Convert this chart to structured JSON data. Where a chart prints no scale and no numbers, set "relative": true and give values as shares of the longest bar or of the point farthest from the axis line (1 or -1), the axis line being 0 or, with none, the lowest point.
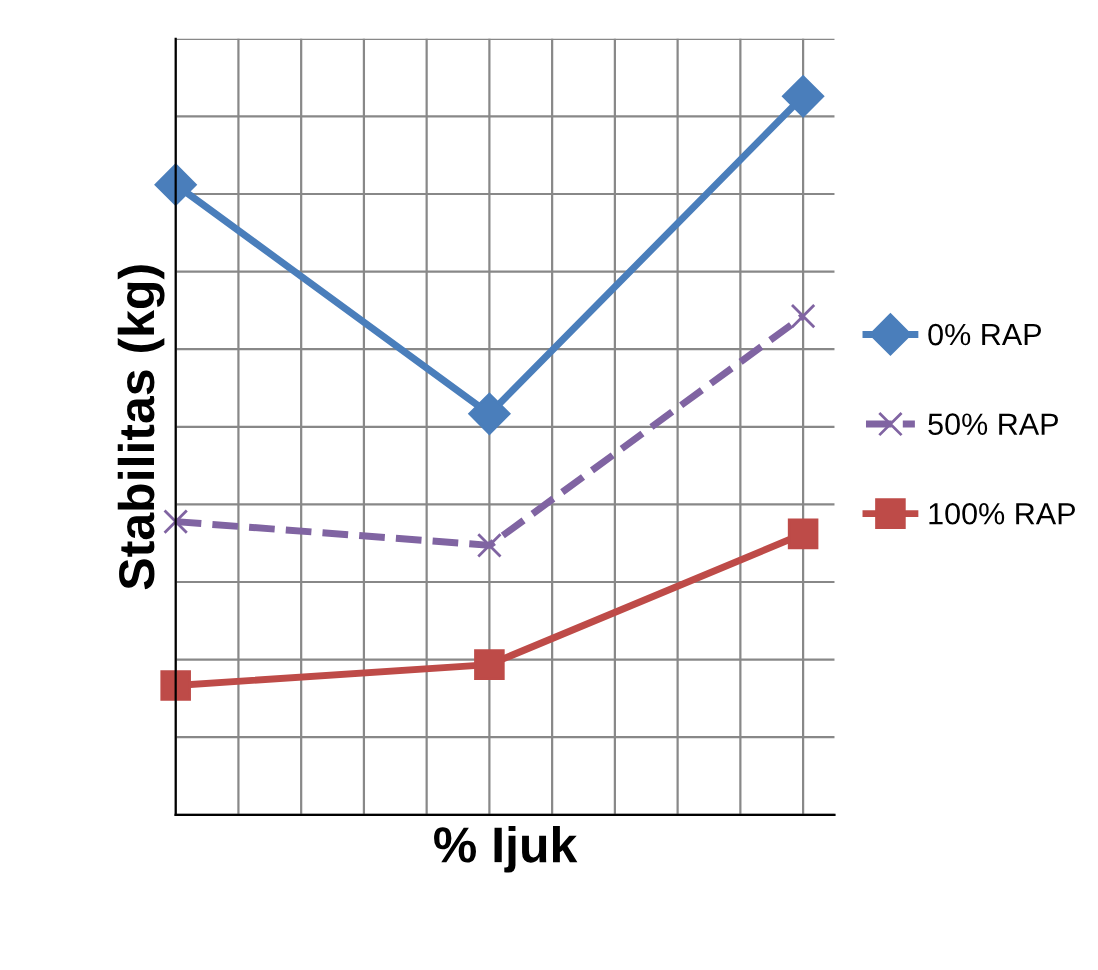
{
  "chart_data": {
    "type": "line",
    "xlabel": "% Ijuk",
    "ylabel": "Stabilitas (kg)",
    "relative": true,
    "categories": [
      null,
      null,
      null
    ],
    "grid": true,
    "legend": "right",
    "series": [
      {
        "name": "0% RAP",
        "color": "#4a7ebb",
        "values": [
          0.877,
          0.558,
          1
        ],
        "marker": "diamond",
        "line_style": "solid"
      },
      {
        "name": "50% RAP",
        "color": "#8064a2",
        "values": [
          0.408,
          0.375,
          0.694
        ],
        "marker": "cross",
        "line_style": "dashed"
      },
      {
        "name": "100% RAP",
        "color": "#be4b48",
        "values": [
          0.18,
          0.209,
          0.391
        ],
        "marker": "square",
        "line_style": "solid"
      }
    ]
  }
}
